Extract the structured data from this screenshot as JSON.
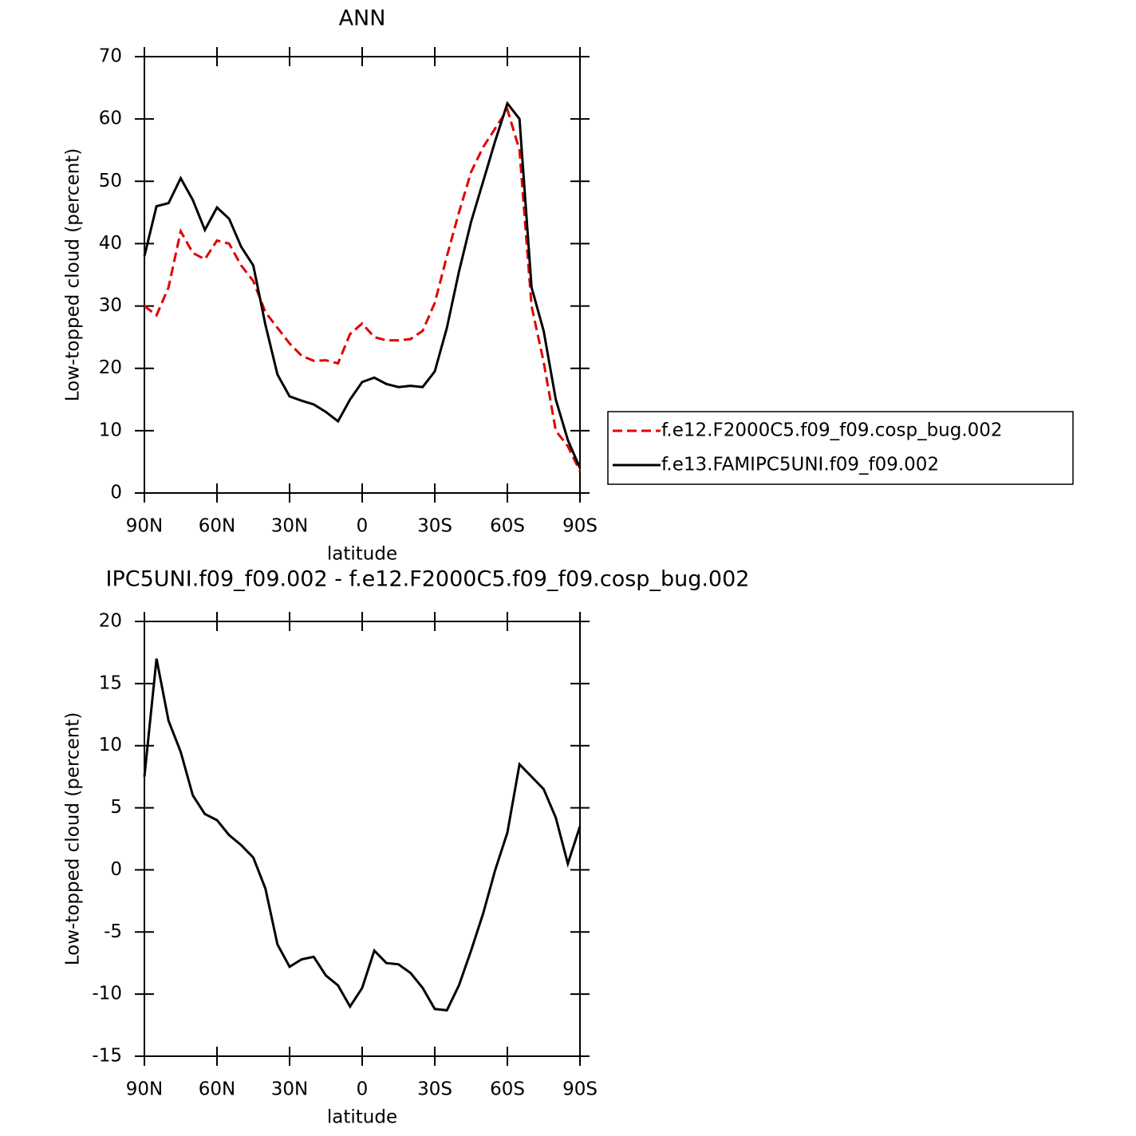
{
  "chart_data": [
    {
      "type": "line",
      "title": "ANN",
      "x_label": "latitude",
      "y_label": "Low-topped cloud (percent)",
      "x": [
        90,
        85,
        80,
        75,
        70,
        65,
        60,
        55,
        50,
        45,
        40,
        35,
        30,
        25,
        20,
        15,
        10,
        5,
        0,
        -5,
        -10,
        -15,
        -20,
        -25,
        -30,
        -35,
        -40,
        -45,
        -50,
        -55,
        -60,
        -65,
        -70,
        -75,
        -80,
        -85,
        -90
      ],
      "series": [
        {
          "name": "f.e12.F2000C5.f09_f09.cosp_bug.002",
          "color": "#e00000",
          "linestyle": "dashed",
          "values": [
            30,
            28.5,
            33,
            42,
            38.5,
            37.5,
            40.5,
            40,
            36.5,
            34,
            29,
            26.5,
            24,
            22,
            21.2,
            21.3,
            20.8,
            25.5,
            27.2,
            25,
            24.5,
            24.5,
            24.7,
            26,
            30.5,
            38,
            45,
            51.5,
            55.5,
            58.5,
            61.5,
            55,
            30,
            21,
            10,
            7.5,
            3.5
          ]
        },
        {
          "name": "f.e13.FAMIPC5UNI.f09_f09.002",
          "color": "#000000",
          "linestyle": "solid",
          "values": [
            38,
            46,
            46.5,
            50.5,
            47,
            42.2,
            45.8,
            44,
            39.5,
            36.5,
            27,
            19,
            15.5,
            14.8,
            14.2,
            13,
            11.5,
            15,
            17.8,
            18.5,
            17.5,
            17,
            17.2,
            17,
            19.5,
            26.5,
            35.5,
            43.5,
            50,
            56.5,
            62.5,
            60,
            33,
            26,
            15,
            8.5,
            4
          ]
        }
      ],
      "xlim": [
        90,
        -90
      ],
      "xticks": [
        {
          "value": 90,
          "label": "90N"
        },
        {
          "value": 60,
          "label": "60N"
        },
        {
          "value": 30,
          "label": "30N"
        },
        0,
        {
          "value": -30,
          "label": "30S"
        },
        {
          "value": -60,
          "label": "60S"
        },
        {
          "value": -90,
          "label": "90S"
        }
      ],
      "ylim": [
        0,
        70
      ],
      "yticks": [
        0,
        10,
        20,
        30,
        40,
        50,
        60,
        70
      ],
      "legend": "right"
    },
    {
      "type": "line",
      "title": "IPC5UNI.f09_f09.002 - f.e12.F2000C5.f09_f09.cosp_bug.002",
      "x_label": "latitude",
      "y_label": "Low-topped cloud (percent)",
      "x": [
        90,
        85,
        80,
        75,
        70,
        65,
        60,
        55,
        50,
        45,
        40,
        35,
        30,
        25,
        20,
        15,
        10,
        5,
        0,
        -5,
        -10,
        -15,
        -20,
        -25,
        -30,
        -35,
        -40,
        -45,
        -50,
        -55,
        -60,
        -65,
        -70,
        -75,
        -80,
        -85,
        -90
      ],
      "color": "#000000",
      "values": [
        7.5,
        17,
        12,
        9.5,
        6,
        4.5,
        4,
        2.8,
        2,
        1,
        -1.5,
        -6,
        -7.8,
        -7.2,
        -7,
        -8.5,
        -9.3,
        -11,
        -9.5,
        -6.5,
        -7.5,
        -7.6,
        -8.3,
        -9.5,
        -11.2,
        -11.3,
        -9.3,
        -6.5,
        -3.5,
        0,
        3,
        8.5,
        7.5,
        6.5,
        4.2,
        0.5,
        3.5
      ],
      "xlim": [
        90,
        -90
      ],
      "xticks": [
        {
          "value": 90,
          "label": "90N"
        },
        {
          "value": 60,
          "label": "60N"
        },
        {
          "value": 30,
          "label": "30N"
        },
        0,
        {
          "value": -30,
          "label": "30S"
        },
        {
          "value": -60,
          "label": "60S"
        },
        {
          "value": -90,
          "label": "90S"
        }
      ],
      "ylim": [
        -15,
        20
      ],
      "yticks": [
        -15,
        -10,
        -5,
        0,
        5,
        10,
        15,
        20
      ]
    }
  ]
}
